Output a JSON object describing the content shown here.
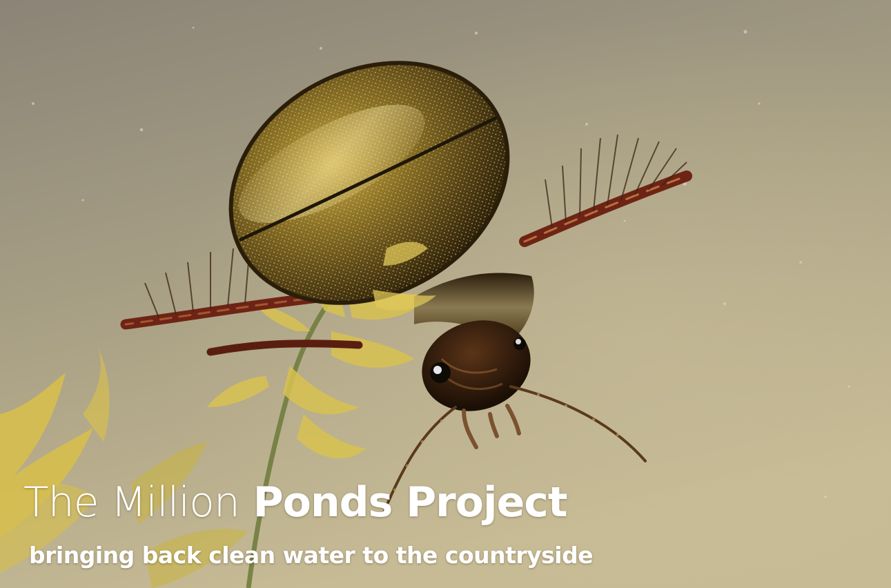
{
  "banner": {
    "title_light": "The Million",
    "title_bold": "Ponds Project",
    "subtitle": "bringing back clean water to the countryside"
  },
  "photo": {
    "subject": "diving beetle swimming underwater beside pondweed",
    "colors": {
      "water_top": "#8c8578",
      "water_bottom": "#c4b896",
      "beetle_shell": "#6a5418",
      "beetle_highlight": "#e8cd6a",
      "legs": "#6e2414",
      "weed": "#d6c24a"
    }
  }
}
